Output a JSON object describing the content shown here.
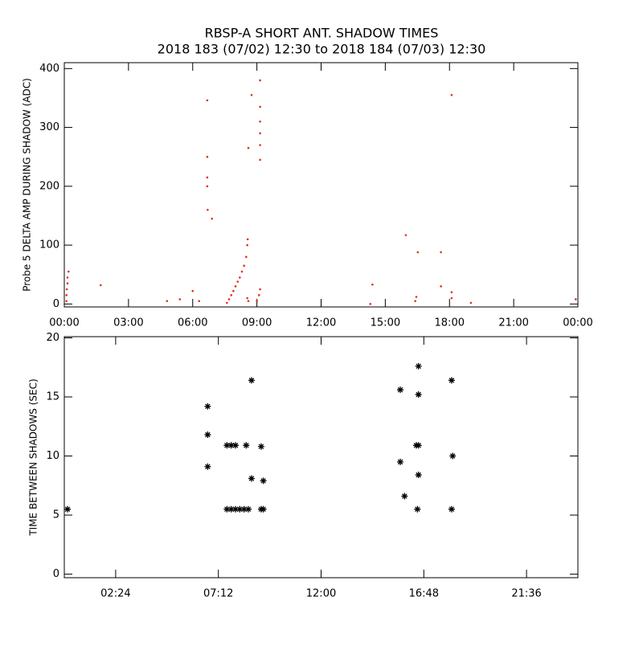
{
  "chart_data": [
    {
      "type": "scatter",
      "title": "RBSP-A SHORT ANT. SHADOW TIMES",
      "subtitle": "2018 183 (07/02) 12:30 to 2018 184 (07/03) 12:30",
      "y_label": "Probe 5 DELTA AMP DURING SHADOW (ADC)",
      "marker": "dot",
      "color": "#e0301e",
      "x": [
        0.1,
        0.1,
        0.12,
        0.15,
        0.15,
        0.2,
        1.7,
        4.8,
        5.4,
        6.0,
        6.3,
        6.68,
        6.68,
        6.68,
        6.68,
        6.7,
        6.9,
        7.6,
        7.7,
        7.8,
        7.9,
        8.0,
        8.1,
        8.2,
        8.3,
        8.4,
        8.5,
        8.55,
        8.57,
        8.55,
        8.6,
        8.6,
        8.75,
        9.15,
        9.15,
        9.15,
        9.15,
        9.15,
        9.15,
        9.15,
        9.1,
        9.0,
        14.3,
        14.4,
        15.96,
        16.52,
        16.4,
        16.45,
        17.6,
        17.6,
        18.1,
        18.1,
        18.1,
        19.0,
        23.9
      ],
      "values": [
        5,
        15,
        25,
        35,
        45,
        55,
        32,
        5,
        8,
        22,
        5,
        346,
        250,
        215,
        200,
        160,
        145,
        2,
        8,
        15,
        22,
        30,
        38,
        45,
        55,
        65,
        80,
        100,
        110,
        10,
        5,
        265,
        355,
        380,
        335,
        310,
        290,
        270,
        245,
        25,
        15,
        5,
        0,
        33,
        117,
        88,
        5,
        12,
        88,
        30,
        355,
        20,
        10,
        2,
        8
      ],
      "xlim": [
        0,
        24
      ],
      "ylim": [
        -5,
        410
      ],
      "xticks": [
        {
          "value": 0,
          "label": "00:00"
        },
        {
          "value": 3,
          "label": "03:00"
        },
        {
          "value": 6,
          "label": "06:00"
        },
        {
          "value": 9,
          "label": "09:00"
        },
        {
          "value": 12,
          "label": "12:00"
        },
        {
          "value": 15,
          "label": "15:00"
        },
        {
          "value": 18,
          "label": "18:00"
        },
        {
          "value": 21,
          "label": "21:00"
        },
        {
          "value": 24,
          "label": "00:00"
        }
      ],
      "yticks": [
        0,
        100,
        200,
        300,
        400
      ]
    },
    {
      "type": "scatter",
      "y_label": "TIME BETWEEN SHADOWS (SEC)",
      "marker": "asterisk",
      "color": "#000000",
      "x": [
        0.15,
        6.7,
        6.7,
        6.7,
        7.6,
        7.8,
        8.0,
        7.6,
        7.8,
        8.0,
        8.2,
        8.4,
        8.6,
        8.5,
        8.75,
        8.75,
        9.2,
        9.3,
        9.2,
        9.3,
        15.7,
        15.7,
        15.9,
        16.45,
        16.55,
        16.55,
        16.55,
        16.55,
        16.5,
        18.1,
        18.15,
        18.1
      ],
      "values": [
        5.5,
        14.2,
        11.8,
        9.1,
        10.9,
        10.9,
        10.9,
        5.5,
        5.5,
        5.5,
        5.5,
        5.5,
        5.5,
        10.9,
        16.4,
        8.1,
        10.8,
        7.9,
        5.5,
        5.5,
        15.6,
        9.5,
        6.6,
        10.9,
        10.9,
        17.6,
        15.2,
        8.4,
        5.5,
        16.4,
        10.0,
        5.5
      ],
      "xlim": [
        0,
        24
      ],
      "ylim": [
        -0.3,
        20.1
      ],
      "xticks": [
        {
          "value": 2.4,
          "label": "02:24"
        },
        {
          "value": 7.2,
          "label": "07:12"
        },
        {
          "value": 12,
          "label": "12:00"
        },
        {
          "value": 16.8,
          "label": "16:48"
        },
        {
          "value": 21.6,
          "label": "21:36"
        }
      ],
      "yticks": [
        0,
        5,
        10,
        15,
        20
      ]
    }
  ]
}
